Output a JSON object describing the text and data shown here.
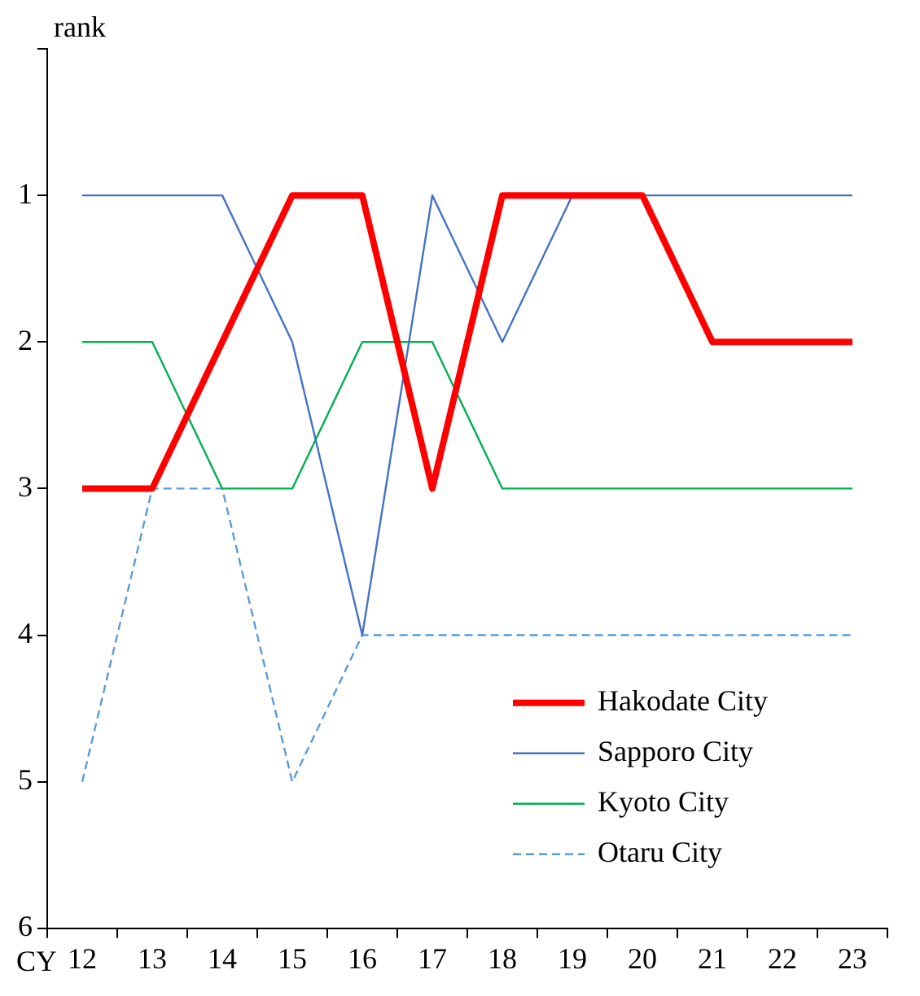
{
  "chart_data": {
    "type": "line",
    "ylabel": "rank",
    "xlabel": "CY",
    "categories": [
      "12",
      "13",
      "14",
      "15",
      "16",
      "17",
      "18",
      "19",
      "20",
      "21",
      "22",
      "23"
    ],
    "ylim": [
      6,
      0
    ],
    "yticks": [
      {
        "value": 0,
        "label": null
      },
      1,
      2,
      3,
      4,
      5,
      6
    ],
    "grid": false,
    "legend": "bottom right",
    "marker": "none",
    "series": [
      {
        "name": "Hakodate City",
        "color": "#ff0000",
        "line_style": "solid",
        "values": [
          3,
          3,
          2,
          1,
          1,
          3,
          1,
          1,
          1,
          2,
          2,
          2
        ]
      },
      {
        "name": "Sapporo City",
        "color": "#4472c4",
        "line_style": "solid",
        "values": [
          1,
          1,
          1,
          2,
          4,
          1,
          2,
          1,
          1,
          1,
          1,
          1
        ]
      },
      {
        "name": "Kyoto City",
        "color": "#00b050",
        "line_style": "solid",
        "values": [
          2,
          2,
          3,
          3,
          2,
          2,
          3,
          3,
          3,
          3,
          3,
          3
        ]
      },
      {
        "name": "Otaru City",
        "color": "#5b9bd5",
        "line_style": "dashed",
        "values": [
          5,
          3,
          3,
          5,
          4,
          4,
          4,
          4,
          4,
          4,
          4,
          4
        ]
      }
    ]
  }
}
